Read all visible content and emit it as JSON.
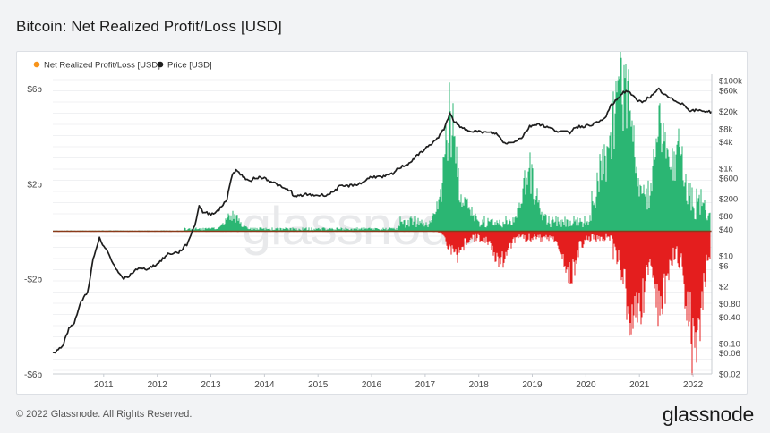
{
  "header": {
    "title": "Bitcoin: Net Realized Profit/Loss [USD]"
  },
  "watermark": "glassnode",
  "footer": {
    "copyright": "© 2022 Glassnode. All Rights Reserved.",
    "logo": "glassnode"
  },
  "colors": {
    "profit": "#2bb673",
    "loss": "#e41e1e",
    "price": "#1e1e1e",
    "legend_nrpl_marker": "#f7931a",
    "zero_line": "#8a3a1a"
  },
  "chart_data": {
    "type": "line",
    "legend": [
      {
        "name": "Net Realized Profit/Loss [USD]",
        "marker": "orange-dot"
      },
      {
        "name": "Price [USD]",
        "marker": "black-dot"
      }
    ],
    "legend_position": "top-left",
    "grid": true,
    "x_axis": {
      "ticks": [
        "2011",
        "2012",
        "2013",
        "2014",
        "2015",
        "2016",
        "2017",
        "2018",
        "2019",
        "2020",
        "2021",
        "2022"
      ],
      "range": [
        2010.55,
        2022.85
      ]
    },
    "y_left": {
      "ticks": [
        "$6b",
        "$2b",
        "-$2b",
        "-$6b"
      ],
      "tick_values": [
        6,
        2,
        -2,
        -6
      ],
      "unit": "billion USD",
      "range": [
        -6,
        6.6
      ]
    },
    "y_right": {
      "scale": "log",
      "ticks": [
        "$100k",
        "$60k",
        "$20k",
        "$8k",
        "$4k",
        "$1k",
        "$600",
        "$200",
        "$80",
        "$40",
        "$10",
        "$6",
        "$2",
        "$0.80",
        "$0.40",
        "$0.10",
        "$0.06",
        "$0.02"
      ],
      "tick_values": [
        100000,
        60000,
        20000,
        8000,
        4000,
        1000,
        600,
        200,
        80,
        40,
        10,
        6,
        2,
        0.8,
        0.4,
        0.1,
        0.06,
        0.02
      ],
      "range": [
        0.02,
        140000
      ]
    },
    "series": [
      {
        "name": "Price [USD]",
        "axis": "right",
        "x": [
          2010.55,
          2010.65,
          2010.75,
          2010.85,
          2010.95,
          2011.08,
          2011.2,
          2011.3,
          2011.42,
          2011.48,
          2011.55,
          2011.65,
          2011.75,
          2011.85,
          2011.95,
          2012.1,
          2012.3,
          2012.5,
          2012.7,
          2012.9,
          2013.05,
          2013.2,
          2013.28,
          2013.35,
          2013.5,
          2013.65,
          2013.8,
          2013.9,
          2013.97,
          2014.1,
          2014.2,
          2014.35,
          2014.5,
          2014.7,
          2014.85,
          2015.0,
          2015.05,
          2015.25,
          2015.5,
          2015.7,
          2015.9,
          2016.1,
          2016.3,
          2016.5,
          2016.7,
          2016.9,
          2017.0,
          2017.2,
          2017.4,
          2017.6,
          2017.75,
          2017.85,
          2017.96,
          2018.05,
          2018.15,
          2018.3,
          2018.5,
          2018.7,
          2018.85,
          2018.96,
          2019.1,
          2019.3,
          2019.45,
          2019.6,
          2019.8,
          2019.95,
          2020.2,
          2020.3,
          2020.5,
          2020.7,
          2020.85,
          2020.96,
          2021.05,
          2021.2,
          2021.3,
          2021.45,
          2021.55,
          2021.65,
          2021.75,
          2021.86,
          2021.96,
          2022.1,
          2022.3,
          2022.45,
          2022.6,
          2022.85
        ],
        "y": [
          0.06,
          0.07,
          0.1,
          0.22,
          0.3,
          0.9,
          1.5,
          8,
          25,
          17,
          14,
          8,
          4.5,
          3,
          3.2,
          5,
          5,
          6.5,
          11,
          12,
          18,
          50,
          140,
          100,
          90,
          110,
          200,
          750,
          900,
          650,
          500,
          620,
          600,
          450,
          350,
          300,
          220,
          250,
          240,
          250,
          380,
          400,
          450,
          650,
          620,
          750,
          1000,
          1300,
          2200,
          3500,
          5000,
          8000,
          17500,
          11500,
          8500,
          7500,
          6800,
          6500,
          6000,
          3800,
          3800,
          5000,
          9000,
          10500,
          8500,
          7200,
          6500,
          8800,
          9200,
          10800,
          13500,
          26000,
          34000,
          55000,
          58000,
          35000,
          33000,
          40000,
          46000,
          64000,
          48000,
          38000,
          30000,
          20500,
          21000,
          19500
        ]
      },
      {
        "name": "Net Realized Profit/Loss [USD]",
        "axis": "left",
        "note": "daily bars, profit shown green above zero, loss shown red below zero",
        "profit_peaks": {
          "x": [
            2013.9,
            2017.96,
            2018.2,
            2019.45,
            2020.85,
            2021.05,
            2021.12,
            2021.25,
            2021.9,
            2022.2
          ],
          "y": [
            0.8,
            6.2,
            1.3,
            2.9,
            2.6,
            5.6,
            8.2,
            6.9,
            4.9,
            3.5
          ]
        },
        "loss_troughs": {
          "x": [
            2018.05,
            2018.9,
            2020.2,
            2021.3,
            2021.37,
            2021.5,
            2021.9,
            2022.45,
            2022.52,
            2022.6
          ],
          "y": [
            -1.1,
            -1.4,
            -2.2,
            -2.4,
            -4.3,
            -3.0,
            -3.3,
            -3.6,
            -6.2,
            -2.6
          ]
        }
      }
    ]
  }
}
